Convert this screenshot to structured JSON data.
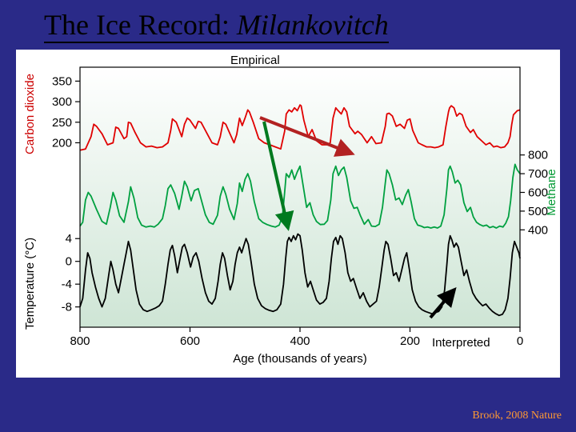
{
  "title_plain": "The Ice Record: ",
  "title_italic": "Milankovitch",
  "empirical_label": "Empirical",
  "interpreted_label": "Interpreted",
  "citation": "Brook, 2008 Nature",
  "slide_background": "#2a2a88",
  "chart_background": "#ffffff",
  "x_axis": {
    "label": "Age (thousands of years)",
    "ticks": [
      800,
      600,
      400,
      200,
      0
    ],
    "tick_fontsize": 16,
    "label_fontsize": 16,
    "color": "#000000"
  },
  "co2_axis": {
    "label": "Carbon dioxide",
    "ticks": [
      200,
      250,
      300,
      350
    ],
    "range": [
      160,
      380
    ],
    "color": "#cc0000",
    "label_fontsize": 15,
    "tick_fontsize": 15
  },
  "ch4_axis": {
    "label": "Methane",
    "ticks": [
      400,
      500,
      600,
      700,
      800
    ],
    "range": [
      350,
      850
    ],
    "color": "#009933",
    "label_fontsize": 15,
    "tick_fontsize": 15
  },
  "temp_axis": {
    "label": "Temperature (°C)",
    "ticks": [
      -8,
      -4,
      0,
      4
    ],
    "range": [
      -11,
      6
    ],
    "color": "#000000",
    "label_fontsize": 15,
    "tick_fontsize": 15
  },
  "gradient": {
    "top_color": "#ffffff",
    "bottom_color": "#cee5d5"
  },
  "co2_series": {
    "color": "#e00000",
    "stroke_width": 1.8,
    "data": [
      [
        800,
        182
      ],
      [
        790,
        185
      ],
      [
        780,
        215
      ],
      [
        775,
        245
      ],
      [
        770,
        240
      ],
      [
        760,
        222
      ],
      [
        750,
        195
      ],
      [
        740,
        200
      ],
      [
        735,
        238
      ],
      [
        730,
        235
      ],
      [
        720,
        210
      ],
      [
        715,
        215
      ],
      [
        712,
        250
      ],
      [
        708,
        248
      ],
      [
        700,
        225
      ],
      [
        690,
        200
      ],
      [
        680,
        190
      ],
      [
        670,
        192
      ],
      [
        660,
        188
      ],
      [
        650,
        190
      ],
      [
        640,
        200
      ],
      [
        635,
        230
      ],
      [
        632,
        258
      ],
      [
        625,
        250
      ],
      [
        615,
        215
      ],
      [
        610,
        245
      ],
      [
        605,
        260
      ],
      [
        600,
        255
      ],
      [
        590,
        235
      ],
      [
        585,
        252
      ],
      [
        580,
        250
      ],
      [
        570,
        225
      ],
      [
        560,
        200
      ],
      [
        550,
        195
      ],
      [
        545,
        215
      ],
      [
        540,
        250
      ],
      [
        535,
        245
      ],
      [
        530,
        230
      ],
      [
        520,
        200
      ],
      [
        515,
        220
      ],
      [
        510,
        260
      ],
      [
        505,
        242
      ],
      [
        500,
        260
      ],
      [
        495,
        280
      ],
      [
        492,
        275
      ],
      [
        485,
        250
      ],
      [
        475,
        210
      ],
      [
        465,
        200
      ],
      [
        455,
        195
      ],
      [
        445,
        190
      ],
      [
        435,
        185
      ],
      [
        428,
        228
      ],
      [
        425,
        270
      ],
      [
        420,
        280
      ],
      [
        415,
        275
      ],
      [
        410,
        285
      ],
      [
        405,
        278
      ],
      [
        400,
        292
      ],
      [
        398,
        290
      ],
      [
        393,
        255
      ],
      [
        385,
        215
      ],
      [
        378,
        232
      ],
      [
        370,
        205
      ],
      [
        360,
        195
      ],
      [
        350,
        195
      ],
      [
        345,
        200
      ],
      [
        340,
        260
      ],
      [
        335,
        285
      ],
      [
        332,
        280
      ],
      [
        325,
        270
      ],
      [
        320,
        285
      ],
      [
        315,
        275
      ],
      [
        310,
        240
      ],
      [
        300,
        222
      ],
      [
        295,
        228
      ],
      [
        288,
        220
      ],
      [
        278,
        200
      ],
      [
        270,
        215
      ],
      [
        262,
        198
      ],
      [
        252,
        200
      ],
      [
        245,
        240
      ],
      [
        242,
        270
      ],
      [
        238,
        272
      ],
      [
        232,
        265
      ],
      [
        225,
        240
      ],
      [
        218,
        245
      ],
      [
        210,
        235
      ],
      [
        205,
        255
      ],
      [
        200,
        258
      ],
      [
        195,
        230
      ],
      [
        185,
        200
      ],
      [
        178,
        195
      ],
      [
        170,
        190
      ],
      [
        162,
        190
      ],
      [
        155,
        188
      ],
      [
        148,
        190
      ],
      [
        140,
        195
      ],
      [
        135,
        238
      ],
      [
        130,
        275
      ],
      [
        128,
        285
      ],
      [
        125,
        290
      ],
      [
        120,
        285
      ],
      [
        115,
        265
      ],
      [
        110,
        272
      ],
      [
        105,
        268
      ],
      [
        98,
        240
      ],
      [
        90,
        225
      ],
      [
        85,
        232
      ],
      [
        78,
        215
      ],
      [
        70,
        205
      ],
      [
        62,
        195
      ],
      [
        55,
        200
      ],
      [
        48,
        190
      ],
      [
        42,
        192
      ],
      [
        35,
        188
      ],
      [
        28,
        190
      ],
      [
        22,
        200
      ],
      [
        18,
        215
      ],
      [
        15,
        245
      ],
      [
        12,
        268
      ],
      [
        5,
        278
      ],
      [
        0,
        280
      ]
    ]
  },
  "ch4_series": {
    "color": "#00a040",
    "stroke_width": 1.8,
    "data": [
      [
        800,
        420
      ],
      [
        795,
        440
      ],
      [
        790,
        560
      ],
      [
        785,
        600
      ],
      [
        780,
        580
      ],
      [
        775,
        545
      ],
      [
        770,
        510
      ],
      [
        760,
        445
      ],
      [
        752,
        430
      ],
      [
        745,
        520
      ],
      [
        740,
        600
      ],
      [
        735,
        560
      ],
      [
        728,
        475
      ],
      [
        720,
        440
      ],
      [
        712,
        550
      ],
      [
        708,
        630
      ],
      [
        702,
        570
      ],
      [
        695,
        465
      ],
      [
        688,
        425
      ],
      [
        680,
        415
      ],
      [
        672,
        420
      ],
      [
        665,
        415
      ],
      [
        658,
        430
      ],
      [
        650,
        460
      ],
      [
        645,
        530
      ],
      [
        640,
        620
      ],
      [
        635,
        640
      ],
      [
        628,
        595
      ],
      [
        620,
        510
      ],
      [
        615,
        580
      ],
      [
        610,
        660
      ],
      [
        605,
        630
      ],
      [
        598,
        555
      ],
      [
        592,
        610
      ],
      [
        585,
        620
      ],
      [
        578,
        545
      ],
      [
        572,
        480
      ],
      [
        565,
        440
      ],
      [
        558,
        430
      ],
      [
        550,
        478
      ],
      [
        545,
        580
      ],
      [
        540,
        630
      ],
      [
        535,
        590
      ],
      [
        528,
        510
      ],
      [
        520,
        455
      ],
      [
        514,
        540
      ],
      [
        510,
        650
      ],
      [
        505,
        605
      ],
      [
        500,
        670
      ],
      [
        495,
        700
      ],
      [
        490,
        660
      ],
      [
        483,
        550
      ],
      [
        475,
        460
      ],
      [
        468,
        440
      ],
      [
        460,
        428
      ],
      [
        452,
        420
      ],
      [
        445,
        415
      ],
      [
        438,
        425
      ],
      [
        432,
        470
      ],
      [
        428,
        600
      ],
      [
        425,
        700
      ],
      [
        420,
        680
      ],
      [
        415,
        720
      ],
      [
        410,
        670
      ],
      [
        405,
        710
      ],
      [
        400,
        740
      ],
      [
        395,
        650
      ],
      [
        388,
        520
      ],
      [
        382,
        545
      ],
      [
        376,
        480
      ],
      [
        370,
        445
      ],
      [
        363,
        428
      ],
      [
        356,
        430
      ],
      [
        350,
        450
      ],
      [
        344,
        560
      ],
      [
        340,
        700
      ],
      [
        335,
        740
      ],
      [
        330,
        690
      ],
      [
        325,
        720
      ],
      [
        320,
        735
      ],
      [
        315,
        680
      ],
      [
        308,
        555
      ],
      [
        302,
        515
      ],
      [
        296,
        520
      ],
      [
        290,
        475
      ],
      [
        283,
        430
      ],
      [
        276,
        455
      ],
      [
        270,
        420
      ],
      [
        263,
        418
      ],
      [
        256,
        430
      ],
      [
        250,
        520
      ],
      [
        245,
        650
      ],
      [
        242,
        720
      ],
      [
        238,
        700
      ],
      [
        232,
        640
      ],
      [
        226,
        560
      ],
      [
        220,
        570
      ],
      [
        214,
        535
      ],
      [
        208,
        585
      ],
      [
        203,
        615
      ],
      [
        198,
        550
      ],
      [
        192,
        460
      ],
      [
        186,
        425
      ],
      [
        180,
        420
      ],
      [
        174,
        412
      ],
      [
        168,
        415
      ],
      [
        162,
        410
      ],
      [
        156,
        415
      ],
      [
        150,
        410
      ],
      [
        144,
        420
      ],
      [
        138,
        480
      ],
      [
        133,
        620
      ],
      [
        130,
        720
      ],
      [
        127,
        740
      ],
      [
        123,
        710
      ],
      [
        118,
        650
      ],
      [
        113,
        665
      ],
      [
        108,
        640
      ],
      [
        102,
        545
      ],
      [
        96,
        498
      ],
      [
        90,
        520
      ],
      [
        85,
        470
      ],
      [
        79,
        440
      ],
      [
        73,
        428
      ],
      [
        67,
        420
      ],
      [
        61,
        425
      ],
      [
        55,
        412
      ],
      [
        49,
        418
      ],
      [
        43,
        410
      ],
      [
        37,
        420
      ],
      [
        31,
        415
      ],
      [
        26,
        435
      ],
      [
        21,
        470
      ],
      [
        17,
        555
      ],
      [
        13,
        680
      ],
      [
        9,
        750
      ],
      [
        5,
        720
      ],
      [
        0,
        700
      ]
    ]
  },
  "temp_series": {
    "color": "#000000",
    "stroke_width": 1.8,
    "data": [
      [
        800,
        -8
      ],
      [
        795,
        -6.5
      ],
      [
        790,
        -1.5
      ],
      [
        786,
        1.5
      ],
      [
        782,
        0.5
      ],
      [
        778,
        -2
      ],
      [
        772,
        -4.5
      ],
      [
        766,
        -6.5
      ],
      [
        760,
        -8
      ],
      [
        754,
        -6.5
      ],
      [
        748,
        -2.5
      ],
      [
        744,
        0
      ],
      [
        740,
        -1.5
      ],
      [
        735,
        -4
      ],
      [
        730,
        -5.5
      ],
      [
        725,
        -3
      ],
      [
        720,
        -0.5
      ],
      [
        716,
        1.5
      ],
      [
        712,
        3.5
      ],
      [
        708,
        2
      ],
      [
        703,
        -1.5
      ],
      [
        698,
        -5
      ],
      [
        692,
        -7.5
      ],
      [
        685,
        -8.5
      ],
      [
        678,
        -8.8
      ],
      [
        670,
        -8.5
      ],
      [
        663,
        -8.2
      ],
      [
        656,
        -7.8
      ],
      [
        650,
        -7
      ],
      [
        645,
        -4
      ],
      [
        640,
        -0.5
      ],
      [
        636,
        2
      ],
      [
        632,
        2.8
      ],
      [
        628,
        1
      ],
      [
        623,
        -2
      ],
      [
        618,
        0.5
      ],
      [
        614,
        2.5
      ],
      [
        610,
        3
      ],
      [
        605,
        1.5
      ],
      [
        599,
        -1
      ],
      [
        594,
        0.8
      ],
      [
        589,
        1.5
      ],
      [
        584,
        0
      ],
      [
        578,
        -3
      ],
      [
        572,
        -5.5
      ],
      [
        566,
        -7
      ],
      [
        560,
        -7.5
      ],
      [
        554,
        -6.5
      ],
      [
        549,
        -3.5
      ],
      [
        545,
        -0.5
      ],
      [
        541,
        1.5
      ],
      [
        537,
        0.5
      ],
      [
        532,
        -2.5
      ],
      [
        527,
        -5
      ],
      [
        522,
        -3.5
      ],
      [
        518,
        -0.5
      ],
      [
        514,
        1.5
      ],
      [
        510,
        2.5
      ],
      [
        506,
        1.5
      ],
      [
        502,
        2.8
      ],
      [
        498,
        4
      ],
      [
        494,
        3
      ],
      [
        489,
        0
      ],
      [
        483,
        -4
      ],
      [
        477,
        -6.5
      ],
      [
        470,
        -7.8
      ],
      [
        463,
        -8.3
      ],
      [
        456,
        -8.6
      ],
      [
        449,
        -8.8
      ],
      [
        442,
        -8.5
      ],
      [
        435,
        -7.5
      ],
      [
        430,
        -4
      ],
      [
        426,
        0.5
      ],
      [
        423,
        3.5
      ],
      [
        420,
        4.2
      ],
      [
        416,
        3.5
      ],
      [
        412,
        4.5
      ],
      [
        408,
        3.8
      ],
      [
        404,
        4.8
      ],
      [
        400,
        4.5
      ],
      [
        396,
        2
      ],
      [
        391,
        -2
      ],
      [
        386,
        -4.5
      ],
      [
        381,
        -3.5
      ],
      [
        376,
        -5
      ],
      [
        370,
        -6.8
      ],
      [
        364,
        -7.5
      ],
      [
        358,
        -7.2
      ],
      [
        352,
        -6.5
      ],
      [
        347,
        -3.5
      ],
      [
        343,
        0.5
      ],
      [
        339,
        3.5
      ],
      [
        335,
        4.2
      ],
      [
        331,
        3
      ],
      [
        327,
        4.5
      ],
      [
        323,
        4
      ],
      [
        318,
        1.5
      ],
      [
        313,
        -2
      ],
      [
        308,
        -3.5
      ],
      [
        303,
        -3
      ],
      [
        297,
        -4.8
      ],
      [
        291,
        -6.5
      ],
      [
        285,
        -5.5
      ],
      [
        279,
        -7
      ],
      [
        273,
        -8
      ],
      [
        267,
        -7.5
      ],
      [
        261,
        -7
      ],
      [
        256,
        -4.5
      ],
      [
        251,
        -1
      ],
      [
        247,
        2
      ],
      [
        244,
        3.5
      ],
      [
        240,
        3
      ],
      [
        235,
        0.5
      ],
      [
        230,
        -2.5
      ],
      [
        225,
        -2
      ],
      [
        220,
        -3.5
      ],
      [
        215,
        -1.5
      ],
      [
        210,
        0.5
      ],
      [
        206,
        1.5
      ],
      [
        201,
        -1.5
      ],
      [
        196,
        -5
      ],
      [
        190,
        -7
      ],
      [
        184,
        -8
      ],
      [
        178,
        -8.5
      ],
      [
        172,
        -8.8
      ],
      [
        166,
        -9
      ],
      [
        160,
        -9.2
      ],
      [
        154,
        -9
      ],
      [
        148,
        -8.8
      ],
      [
        142,
        -8
      ],
      [
        137,
        -5
      ],
      [
        133,
        -0.5
      ],
      [
        130,
        3
      ],
      [
        127,
        4.5
      ],
      [
        124,
        3.8
      ],
      [
        120,
        2.5
      ],
      [
        116,
        3.2
      ],
      [
        112,
        2.5
      ],
      [
        107,
        0
      ],
      [
        102,
        -2.5
      ],
      [
        97,
        -1.5
      ],
      [
        92,
        -3.5
      ],
      [
        86,
        -5.5
      ],
      [
        80,
        -6.5
      ],
      [
        74,
        -7.2
      ],
      [
        68,
        -7.8
      ],
      [
        62,
        -7.5
      ],
      [
        56,
        -8.2
      ],
      [
        50,
        -8.8
      ],
      [
        44,
        -9.2
      ],
      [
        38,
        -9.5
      ],
      [
        32,
        -9.3
      ],
      [
        27,
        -8.5
      ],
      [
        22,
        -6.5
      ],
      [
        18,
        -3
      ],
      [
        14,
        1.5
      ],
      [
        10,
        3.5
      ],
      [
        6,
        2.5
      ],
      [
        2,
        1.5
      ],
      [
        0,
        0.5
      ]
    ]
  },
  "arrows": [
    {
      "from": [
        305,
        85
      ],
      "to": [
        420,
        130
      ],
      "color": "#b22222",
      "width": 4
    },
    {
      "from": [
        310,
        90
      ],
      "to": [
        340,
        223
      ],
      "color": "#007a1f",
      "width": 4
    },
    {
      "from": [
        518,
        335
      ],
      "to": [
        548,
        300
      ],
      "color": "#000000",
      "width": 4
    }
  ]
}
